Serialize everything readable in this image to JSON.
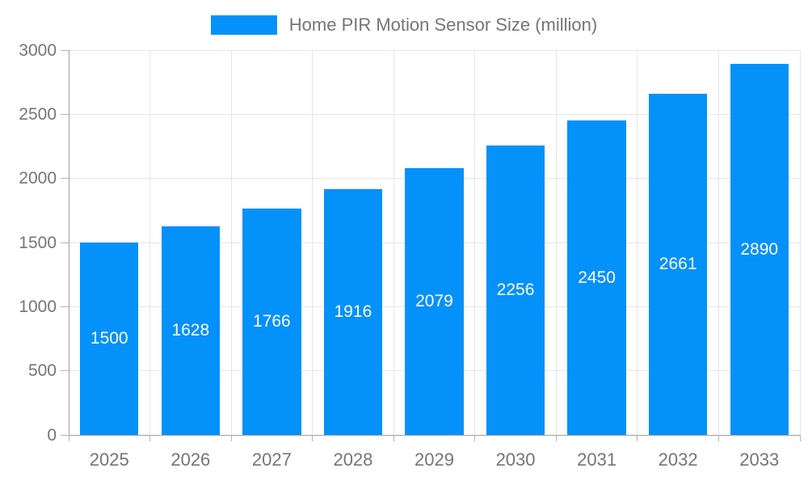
{
  "chart_data": {
    "type": "bar",
    "title": "Home PIR Motion Sensor Size (million)",
    "legend": {
      "position": "top",
      "entries": [
        "Home PIR Motion Sensor Size (million)"
      ]
    },
    "categories": [
      "2025",
      "2026",
      "2027",
      "2028",
      "2029",
      "2030",
      "2031",
      "2032",
      "2033"
    ],
    "series": [
      {
        "name": "Home PIR Motion Sensor Size (million)",
        "values": [
          1500,
          1628,
          1766,
          1916,
          2079,
          2256,
          2450,
          2661,
          2890
        ]
      }
    ],
    "data_labels_shown": true,
    "xlabel": "",
    "ylabel": "",
    "ylim": [
      0,
      3000
    ],
    "yticks": [
      0,
      500,
      1000,
      1500,
      2000,
      2500,
      3000
    ],
    "grid": true,
    "colors": {
      "bar": "#0591FA",
      "data_label_text": "#ffffff",
      "axis_text": "#757575",
      "grid_line": "#e6e6e6",
      "axis_line": "#9e9e9e",
      "tick_line": "#b5b5b5",
      "background": "#ffffff"
    }
  }
}
